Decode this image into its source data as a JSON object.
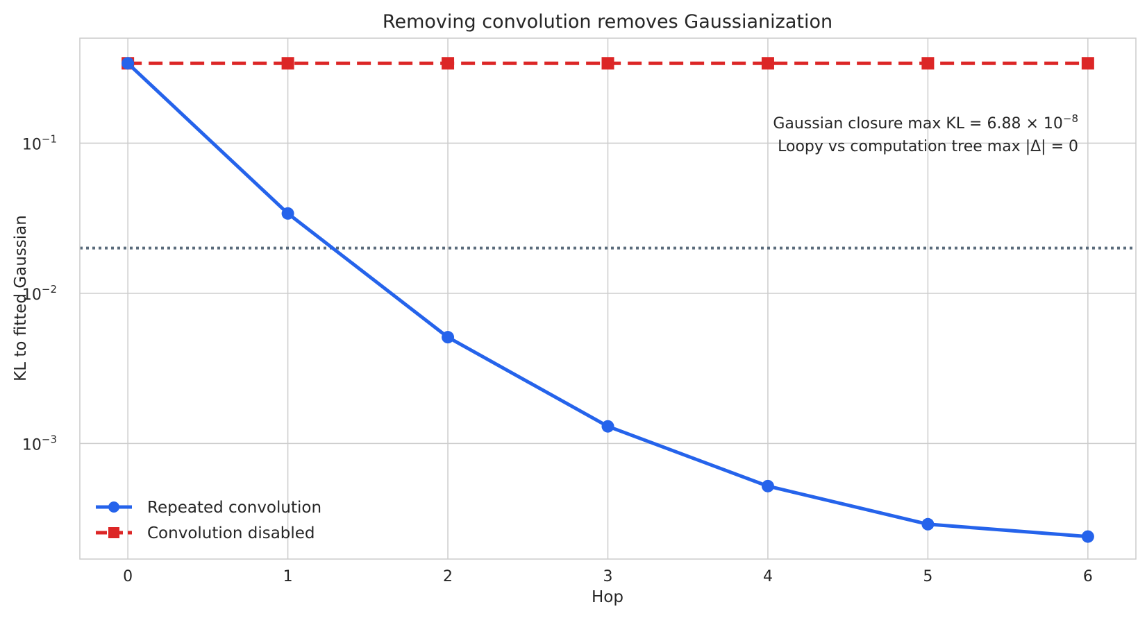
{
  "chart_data": {
    "type": "line",
    "title": "Removing convolution removes Gaussianization",
    "xlabel": "Hop",
    "ylabel": "KL to fitted Gaussian",
    "yscale": "log",
    "x": [
      0,
      1,
      2,
      3,
      4,
      5,
      6
    ],
    "xlim": [
      -0.3,
      6.3
    ],
    "ylim": [
      0.00017,
      0.5
    ],
    "y_ticks": [
      {
        "value": 0.1,
        "base": "10",
        "exp": "−1"
      },
      {
        "value": 0.01,
        "base": "10",
        "exp": "−2"
      },
      {
        "value": 0.001,
        "base": "10",
        "exp": "−3"
      }
    ],
    "grid": true,
    "legend_position": "lower-left",
    "series": [
      {
        "name": "Repeated convolution",
        "color": "#2563eb",
        "marker": "circle",
        "linestyle": "solid",
        "values": [
          0.34,
          0.034,
          0.0051,
          0.0013,
          0.00052,
          0.00029,
          0.00024
        ]
      },
      {
        "name": "Convolution disabled",
        "color": "#dc2626",
        "marker": "square",
        "linestyle": "dashed",
        "values": [
          0.34,
          0.34,
          0.34,
          0.34,
          0.34,
          0.34,
          0.34
        ]
      }
    ],
    "reference_line": {
      "value": 0.02,
      "color": "#5a6b7b",
      "linestyle": "dotted"
    },
    "annotations": [
      "Gaussian closure max KL = 6.88 × 10",
      "Loopy vs computation tree max |Δ| = 0"
    ],
    "annotation_exponent": "−8"
  }
}
